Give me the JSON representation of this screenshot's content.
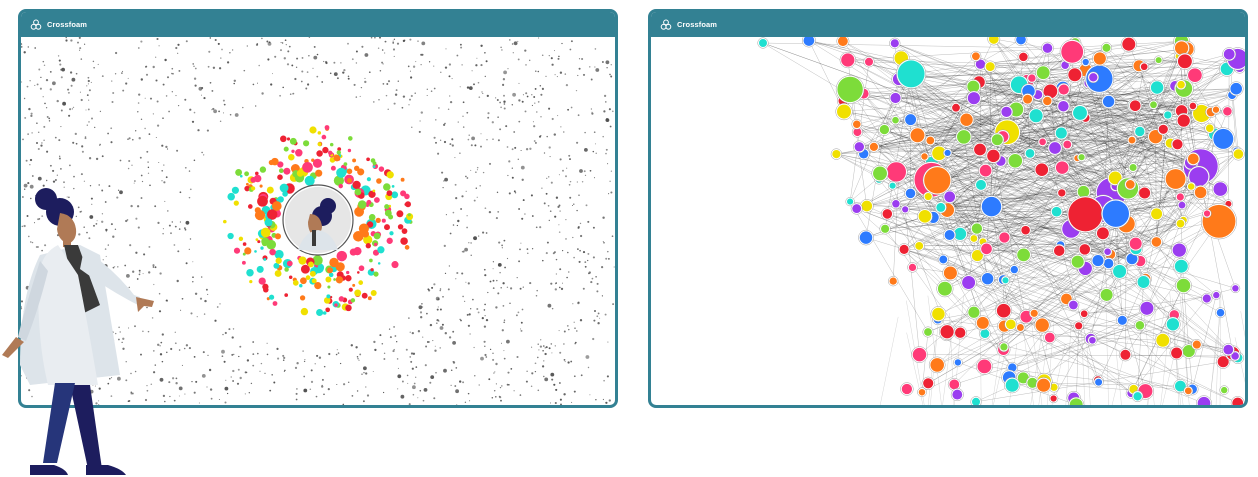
{
  "app": {
    "name": "Crossfoam",
    "accent": "#338193",
    "logo_icon": "crossfoam-logo-icon"
  },
  "left_window": {
    "title": "Crossfoam",
    "view": "network-loading-cluster"
  },
  "right_window": {
    "title": "Crossfoam",
    "view": "network-graph"
  },
  "node_colors": [
    "#ff3a78",
    "#1fe0d0",
    "#7ddc3a",
    "#ff7a1a",
    "#f0e000",
    "#ee2233",
    "#2d7bff",
    "#9b3df0"
  ],
  "illustration": {
    "person": "person-walking-illustration",
    "avatar": "person-avatar-icon"
  }
}
